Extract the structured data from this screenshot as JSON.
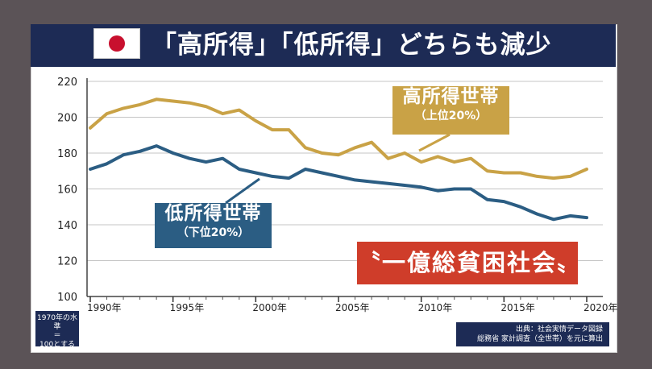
{
  "title": "「高所得」「低所得」どちらも減少",
  "icons": {
    "flag": "japan-flag-icon",
    "flag_color": "#c8102e"
  },
  "colors": {
    "high": "#c9a246",
    "low": "#2b5d83",
    "accent": "#cf3d2a",
    "navy": "#1d2b55"
  },
  "annotations": {
    "high_label": "高所得世帯",
    "high_sub": "（上位20%）",
    "low_label": "低所得世帯",
    "low_sub": "（下位20%）",
    "headline": "〝一億総貧困社会〟",
    "base_line1": "1970年の水準",
    "base_line2": "＝",
    "base_line3": "100とする",
    "source_line1": "出典：社会実情データ図録",
    "source_line2": "総務省 家計調査（全世帯）を元に算出"
  },
  "chart_data": {
    "type": "line",
    "title": "「高所得」「低所得」どちらも減少",
    "xlim": [
      1990,
      2020
    ],
    "ylim": [
      100,
      220
    ],
    "yticks": [
      100,
      120,
      140,
      160,
      180,
      200,
      220
    ],
    "xticks": [
      {
        "value": 1990,
        "label": "1990年"
      },
      {
        "value": 1995,
        "label": "1995年"
      },
      {
        "value": 2000,
        "label": "2000年"
      },
      {
        "value": 2005,
        "label": "2005年"
      },
      {
        "value": 2010,
        "label": "2010年"
      },
      {
        "value": 2015,
        "label": "2015年"
      },
      {
        "value": 2020,
        "label": "2020年"
      }
    ],
    "grid": true,
    "x": [
      1990,
      1991,
      1992,
      1993,
      1994,
      1995,
      1996,
      1997,
      1998,
      1999,
      2000,
      2001,
      2002,
      2003,
      2004,
      2005,
      2006,
      2007,
      2008,
      2009,
      2010,
      2011,
      2012,
      2013,
      2014,
      2015,
      2016,
      2017,
      2018,
      2019,
      2020
    ],
    "series": [
      {
        "name": "高所得世帯（上位20%）",
        "color": "#c9a246",
        "values": [
          194,
          202,
          205,
          207,
          210,
          209,
          208,
          206,
          202,
          204,
          198,
          193,
          193,
          183,
          180,
          179,
          183,
          186,
          177,
          180,
          175,
          178,
          175,
          177,
          170,
          169,
          169,
          167,
          166,
          167,
          171
        ]
      },
      {
        "name": "低所得世帯（下位20%）",
        "color": "#2b5d83",
        "values": [
          171,
          174,
          179,
          181,
          184,
          180,
          177,
          175,
          177,
          171,
          169,
          167,
          166,
          171,
          169,
          167,
          165,
          164,
          163,
          162,
          161,
          159,
          160,
          160,
          154,
          153,
          150,
          146,
          143,
          145,
          144
        ]
      }
    ]
  }
}
